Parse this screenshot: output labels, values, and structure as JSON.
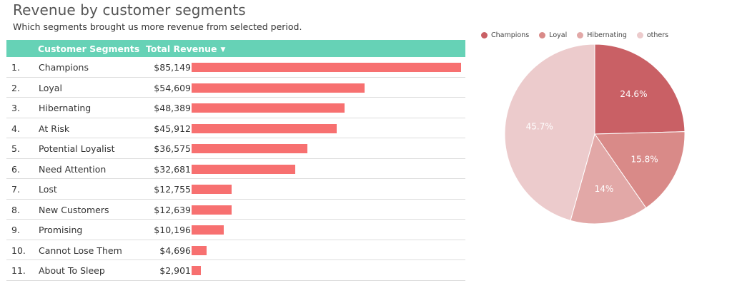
{
  "title": "Revenue by customer segments",
  "subtitle": "Which segments brought us more revenue from selected period.",
  "table": {
    "header_segment": "Customer Segments",
    "header_revenue": "Total Revenue",
    "sort_icon": "caret-down-icon"
  },
  "bar_color": "#f77070",
  "header_color": "#66d2b6",
  "chart_data": [
    {
      "type": "bar",
      "orientation": "horizontal",
      "categories": [
        "Champions",
        "Loyal",
        "Hibernating",
        "At Risk",
        "Potential Loyalist",
        "Need Attention",
        "Lost",
        "New Customers",
        "Promising",
        "Cannot Lose Them",
        "About To Sleep"
      ],
      "ranks": [
        "1.",
        "2.",
        "3.",
        "4.",
        "5.",
        "6.",
        "7.",
        "8.",
        "9.",
        "10.",
        "11."
      ],
      "values": [
        85149,
        54609,
        48389,
        45912,
        36575,
        32681,
        12755,
        12639,
        10196,
        4696,
        2901
      ],
      "labels": [
        "$85,149",
        "$54,609",
        "$48,389",
        "$45,912",
        "$36,575",
        "$32,681",
        "$12,755",
        "$12,639",
        "$10,196",
        "$4,696",
        "$2,901"
      ]
    },
    {
      "type": "pie",
      "legend_position": "top",
      "slices": [
        {
          "name": "Champions",
          "value": 24.6,
          "label": "24.6%",
          "color": "#c96065"
        },
        {
          "name": "Loyal",
          "value": 15.8,
          "label": "15.8%",
          "color": "#d98a88"
        },
        {
          "name": "Hibernating",
          "value": 14,
          "label": "14%",
          "color": "#e2a8a7"
        },
        {
          "name": "others",
          "value": 45.7,
          "label": "45.7%",
          "color": "#eccbcc"
        }
      ]
    }
  ]
}
